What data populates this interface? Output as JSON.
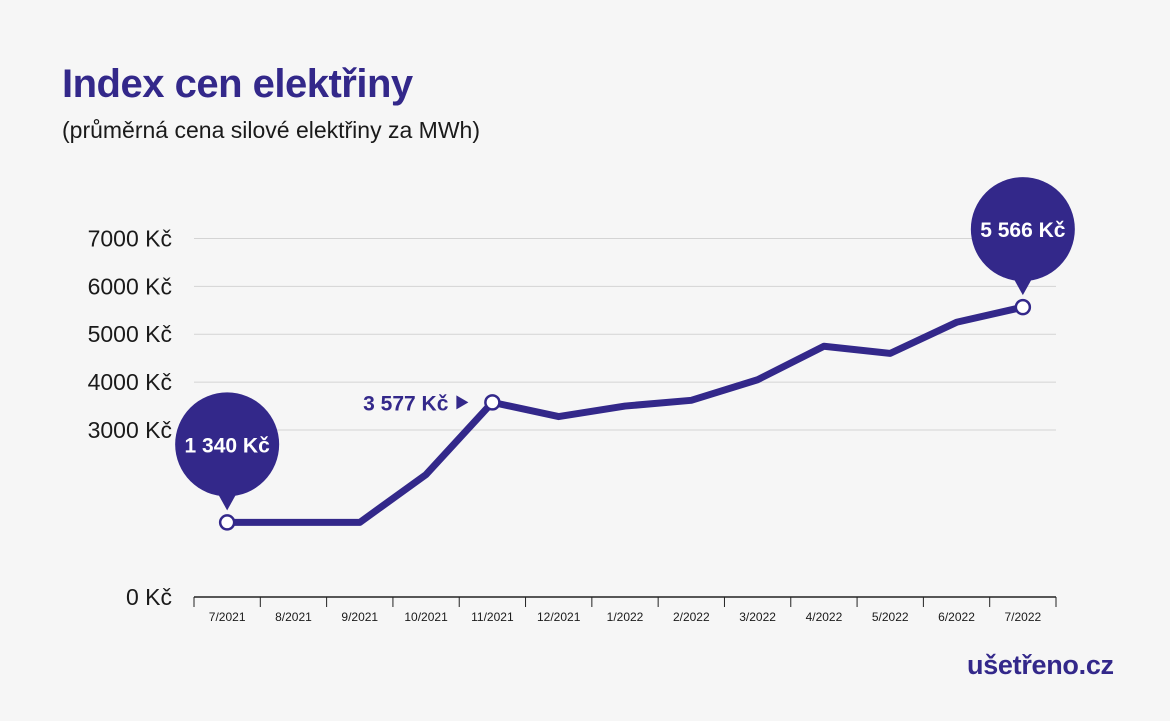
{
  "title": "Index cen elektřiny",
  "subtitle": "(průměrná cena silové elektřiny za MWh)",
  "logo": "ušetřeno.cz",
  "colors": {
    "line": "#33288a",
    "bubble": "#33288a",
    "grid": "#d4d4d4",
    "axis": "#222222",
    "text": "#1a1a1a",
    "logo_accent": "#f2b705"
  },
  "chart_data": {
    "type": "line",
    "title": "Index cen elektřiny",
    "subtitle": "(průměrná cena silové elektřiny za MWh)",
    "categories": [
      "7/2021",
      "8/2021",
      "9/2021",
      "10/2021",
      "11/2021",
      "12/2021",
      "1/2022",
      "2/2022",
      "3/2022",
      "4/2022",
      "5/2022",
      "6/2022",
      "7/2022"
    ],
    "values": [
      1340,
      1340,
      1340,
      2200,
      3577,
      3280,
      3500,
      3620,
      4050,
      4750,
      4600,
      5250,
      5566
    ],
    "y_ticks": [
      {
        "value": 0,
        "label": "0 Kč"
      },
      {
        "value": 3000,
        "label": "3000 Kč"
      },
      {
        "value": 4000,
        "label": "4000 Kč"
      },
      {
        "value": 5000,
        "label": "5000 Kč"
      },
      {
        "value": 6000,
        "label": "6000 Kč"
      },
      {
        "value": 7000,
        "label": "7000 Kč"
      }
    ],
    "xlabel": "",
    "ylabel": "",
    "annotations": [
      {
        "index": 0,
        "label": "1 340 Kč",
        "style": "bubble"
      },
      {
        "index": 4,
        "label": "3 577 Kč",
        "style": "arrow"
      },
      {
        "index": 12,
        "label": "5 566 Kč",
        "style": "bubble"
      }
    ],
    "grid": true,
    "legend": "none"
  }
}
